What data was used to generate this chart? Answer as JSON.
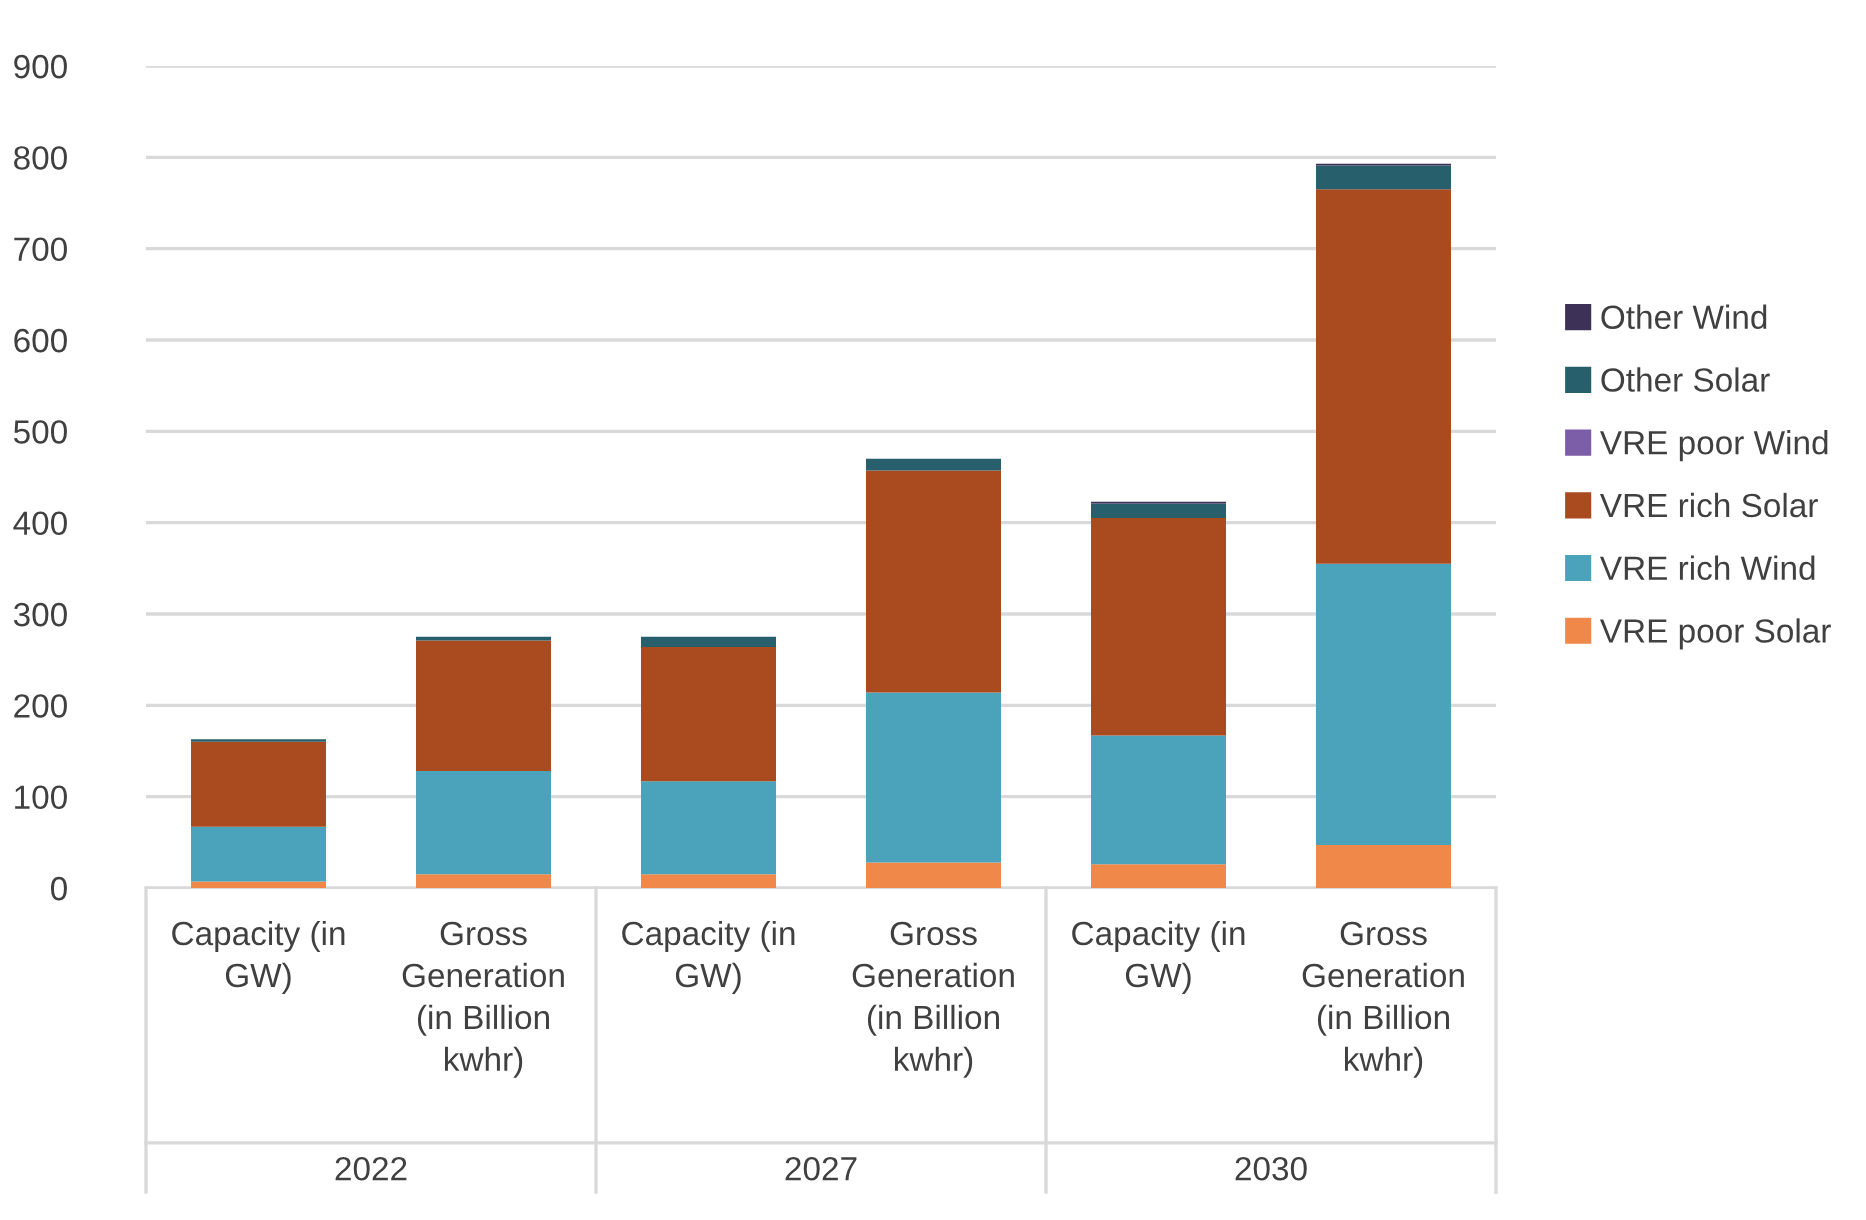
{
  "chart_data": {
    "type": "bar",
    "stacked": true,
    "categories": [
      "Capacity (in\nGW)",
      "Gross\nGeneration\n(in Billion\nkwhr)",
      "Capacity (in\nGW)",
      "Gross\nGeneration\n(in Billion\nkwhr)",
      "Capacity (in\nGW)",
      "Gross\nGeneration\n(in Billion\nkwhr)"
    ],
    "annotations": [
      "2022",
      "2027",
      "2030"
    ],
    "series": [
      {
        "name": "VRE poor Solar",
        "color": "#f0884a",
        "values": [
          7,
          15,
          15,
          28,
          26,
          47
        ]
      },
      {
        "name": "VRE rich Wind",
        "color": "#4aa3bb",
        "values": [
          60,
          113,
          102,
          186,
          141,
          308
        ]
      },
      {
        "name": "VRE rich Solar",
        "color": "#a94b1f",
        "values": [
          93,
          143,
          147,
          243,
          238,
          410
        ]
      },
      {
        "name": "VRE poor Wind",
        "color": "#7b5ea7",
        "values": [
          0,
          0,
          0,
          0,
          0,
          0
        ]
      },
      {
        "name": "Other Solar",
        "color": "#285f6d",
        "values": [
          3,
          4,
          11,
          13,
          16,
          26
        ]
      },
      {
        "name": "Other Wind",
        "color": "#3e3158",
        "values": [
          0,
          0,
          0,
          0,
          2,
          2
        ]
      }
    ],
    "ylim": [
      0,
      900
    ],
    "yticks": [
      0,
      100,
      200,
      300,
      400,
      500,
      600,
      700,
      800,
      900
    ],
    "grid": "y",
    "legend": "right"
  }
}
